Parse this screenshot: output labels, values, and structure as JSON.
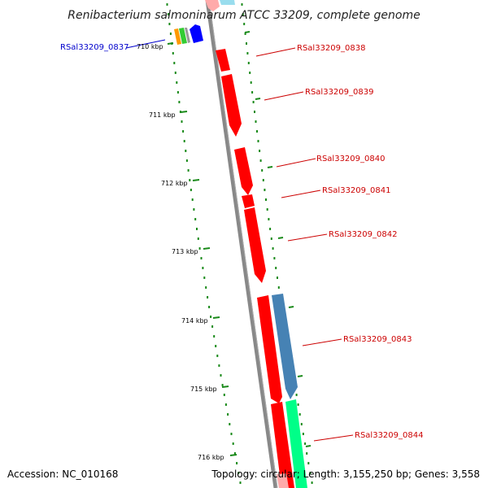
{
  "title": "Renibacterium salmoninarum ATCC 33209, complete genome",
  "footer": {
    "accession": "Accession: NC_010168",
    "topology": "Topology: circular; Length: 3,155,250 bp; Genes: 3,558"
  },
  "colors": {
    "cds": "#ff0000",
    "cds_faded": "#ffaaaa",
    "steelblue": "#4682b4",
    "spring": "#00ff88",
    "pale": "#99ddee",
    "backbone": "#888888",
    "tick": "#1a8a1a",
    "label_red": "#cc0000",
    "label_blue": "#0000cc",
    "orange": "#ff9900",
    "green": "#33cc33",
    "blue": "#0000ff",
    "gray": "#999999"
  },
  "ticks": [
    {
      "label": "710 kbp"
    },
    {
      "label": "711 kbp"
    },
    {
      "label": "712 kbp"
    },
    {
      "label": "713 kbp"
    },
    {
      "label": "714 kbp"
    },
    {
      "label": "715 kbp"
    },
    {
      "label": "716 kbp"
    }
  ],
  "genes": [
    {
      "name": "RSal33209_0837",
      "color": "label_blue"
    },
    {
      "name": "RSal33209_0838",
      "color": "label_red"
    },
    {
      "name": "RSal33209_0839",
      "color": "label_red"
    },
    {
      "name": "RSal33209_0840",
      "color": "label_red"
    },
    {
      "name": "RSal33209_0841",
      "color": "label_red"
    },
    {
      "name": "RSal33209_0842",
      "color": "label_red"
    },
    {
      "name": "RSal33209_0843",
      "color": "label_red"
    },
    {
      "name": "RSal33209_0844",
      "color": "label_red"
    }
  ]
}
